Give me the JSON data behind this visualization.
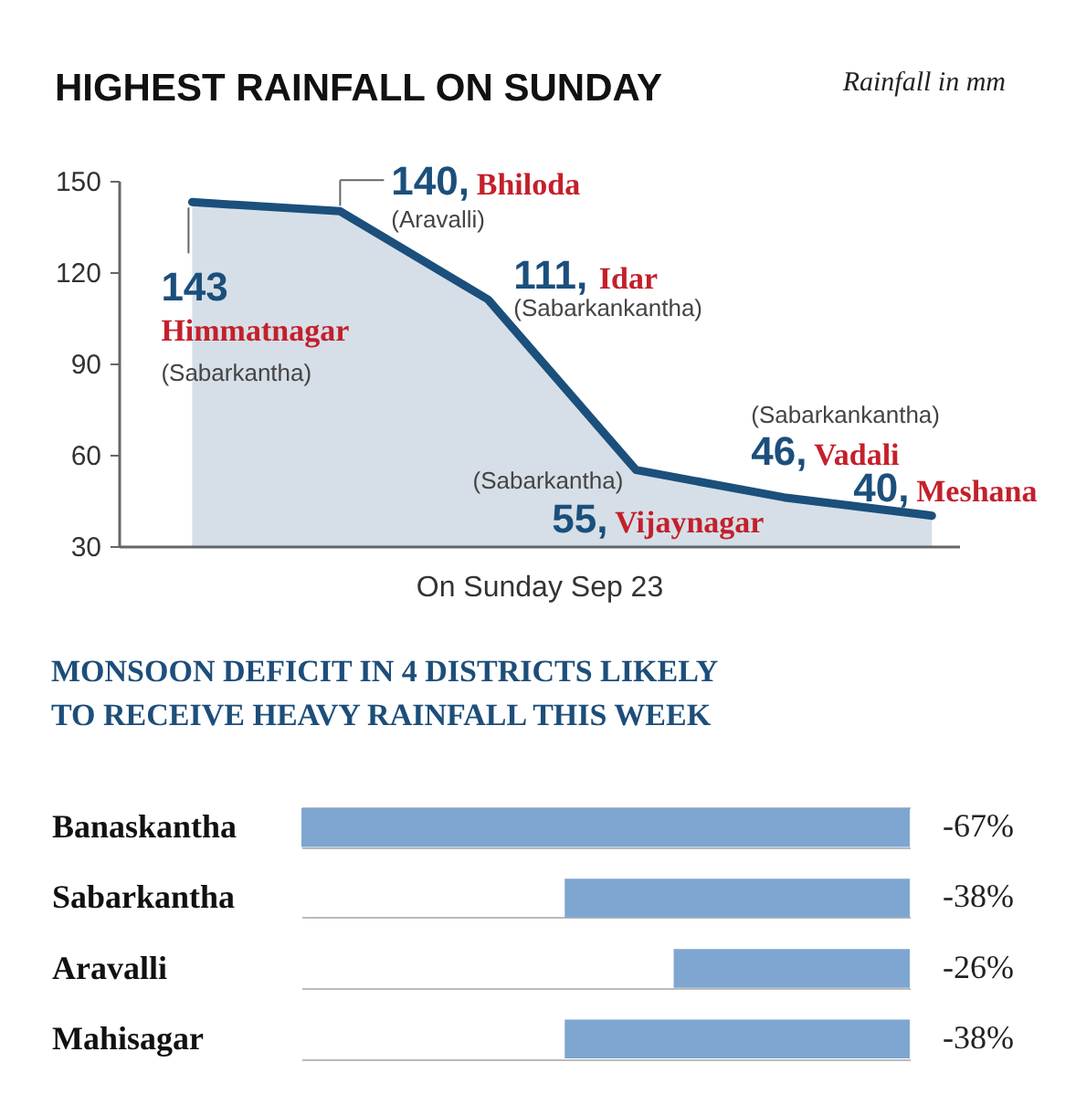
{
  "chart_data": [
    {
      "type": "area",
      "title": "HIGHEST RAINFALL ON SUNDAY",
      "ylabel": "Rainfall in mm",
      "xlabel": "On Sunday Sep 23",
      "categories": [
        null,
        null,
        null,
        null,
        null,
        null
      ],
      "values": [
        143,
        140,
        111,
        55,
        46,
        40
      ],
      "color": "#1b4f7c",
      "value_labels": [
        "143",
        "140,",
        "111,",
        "55,",
        "46,",
        "40,"
      ],
      "ylim": [
        30,
        150
      ],
      "yticks": [
        30,
        60,
        90,
        120,
        150
      ],
      "annotations": [
        "Himmatnagar",
        "(Sabarkantha)",
        "Bhiloda",
        "(Aravalli)",
        "Idar",
        "(Sabarkankantha)",
        "Vijaynagar",
        "(Sabarkantha)",
        "Vadali",
        "(Sabarkankantha)",
        "Meshana"
      ]
    },
    {
      "type": "bar",
      "orientation": "horizontal",
      "title": "MONSOON DEFICIT IN 4 DISTRICTS LIKELY TO RECEIVE HEAVY RAINFALL THIS WEEK",
      "categories": [
        "Banaskantha",
        "Sabarkantha",
        "Aravalli",
        "Mahisagar"
      ],
      "values": [
        -67,
        -38,
        -26,
        -38
      ],
      "color": "#7ea6d0",
      "value_labels": [
        "-67%",
        "-38%",
        "-26%",
        "-38%"
      ],
      "xlim": [
        -67,
        0
      ],
      "tick_labels": "y",
      "grid": "y"
    }
  ]
}
